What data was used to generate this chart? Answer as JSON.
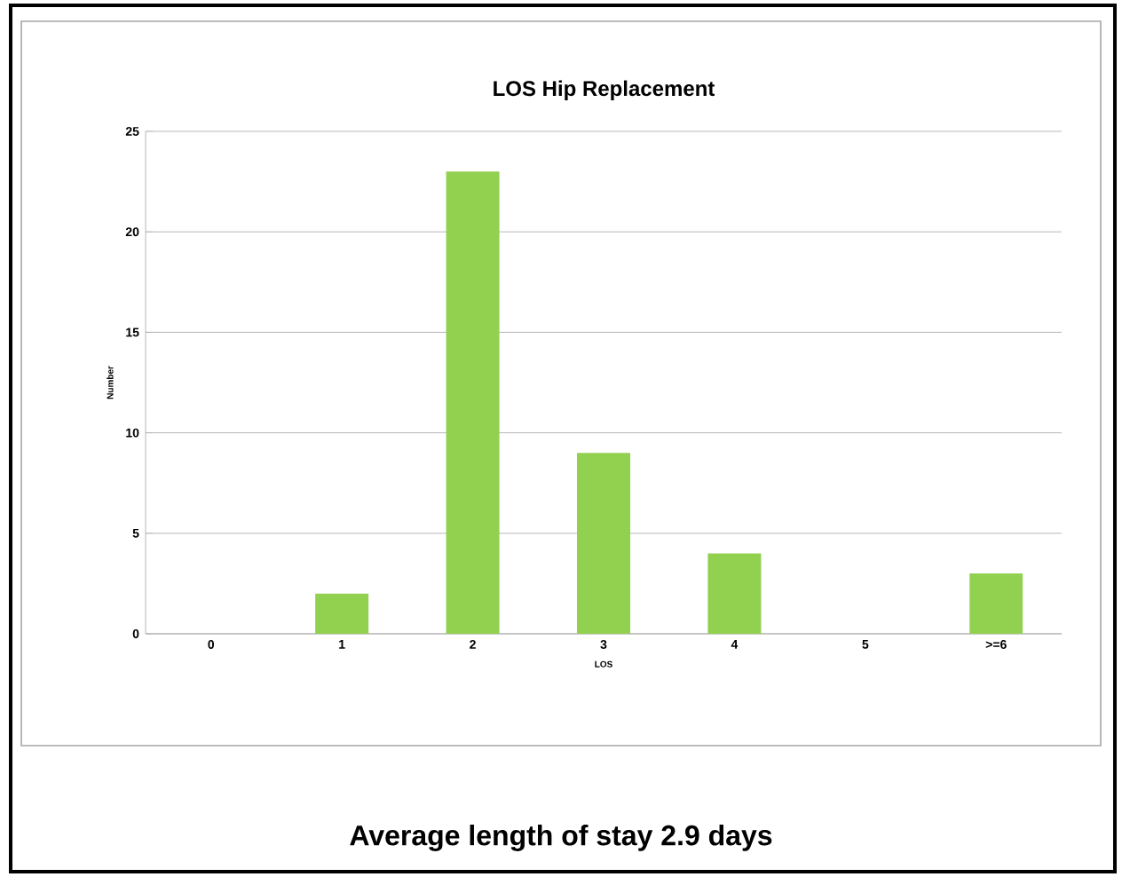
{
  "chart_data": {
    "type": "bar",
    "title": "LOS Hip Replacement",
    "xlabel": "LOS",
    "ylabel": "Number",
    "categories": [
      "0",
      "1",
      "2",
      "3",
      "4",
      "5",
      ">=6"
    ],
    "values": [
      0,
      2,
      23,
      9,
      4,
      0,
      3
    ],
    "color": "#92d050",
    "ylim": [
      0,
      25
    ],
    "yticks": [
      0,
      5,
      10,
      15,
      20,
      25
    ],
    "grid": "y",
    "annotations": [
      "Average length of stay 2.9 days"
    ]
  }
}
